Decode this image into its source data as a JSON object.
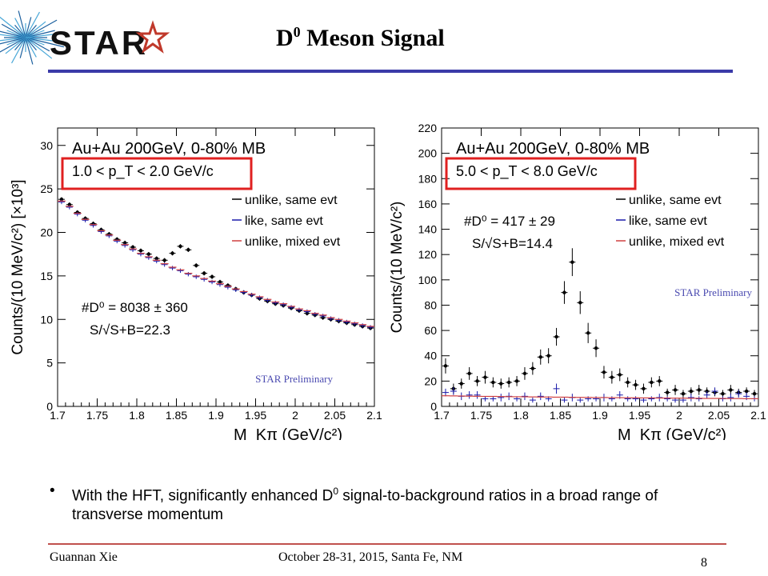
{
  "slide": {
    "logo_text": "STAR",
    "title_main": "D",
    "title_sup": "0",
    "title_rest": " Meson Signal",
    "bullet": {
      "marker": "•",
      "text_before": "With the HFT, significantly enhanced D",
      "text_sup": "0",
      "text_after": " signal-to-background ratios in a broad range of transverse momentum"
    },
    "footer_left": "Guannan Xie",
    "footer_center": "October 28-31, 2015, Santa Fe, NM",
    "page_number": "8"
  },
  "colors": {
    "title_line": "#3a3aa8",
    "footer_line": "#c0504d",
    "highlight_box": "#e02020",
    "unlike_same": "#000000",
    "like_same": "#1a1aaa",
    "unlike_mixed": "#d04040",
    "watermark": "#4a4ab0"
  },
  "chart_data": [
    {
      "type": "scatter",
      "title": "Au+Au 200GeV, 0-80% MB",
      "pt_label": "1.0 < p_T < 2.0 GeV/c",
      "xlabel": "M_Kπ (GeV/c²)",
      "ylabel": "Counts/(10 MeV/c²) [×10³]",
      "xlim": [
        1.7,
        2.1
      ],
      "ylim": [
        0,
        32
      ],
      "xticks": [
        1.7,
        1.75,
        1.8,
        1.85,
        1.9,
        1.95,
        2,
        2.05,
        2.1
      ],
      "xtick_labels": [
        "1.7",
        "1.75",
        "1.8",
        "1.85",
        "1.9",
        "1.95",
        "2",
        "2.05",
        "2.1"
      ],
      "yticks": [
        0,
        5,
        10,
        15,
        20,
        25,
        30
      ],
      "ytick_labels": [
        "0",
        "5",
        "10",
        "15",
        "20",
        "25",
        "30"
      ],
      "legend": [
        "unlike, same evt",
        "like, same evt",
        "unlike, mixed evt"
      ],
      "annotation_line1": "#D⁰ = 8038 ± 360",
      "annotation_line2": "S/√S+B=22.3",
      "watermark": "STAR Preliminary",
      "series": [
        {
          "name": "unlike, same evt",
          "x": [
            1.705,
            1.715,
            1.725,
            1.735,
            1.745,
            1.755,
            1.765,
            1.775,
            1.785,
            1.795,
            1.805,
            1.815,
            1.825,
            1.835,
            1.845,
            1.855,
            1.865,
            1.875,
            1.885,
            1.895,
            1.905,
            1.915,
            1.925,
            1.935,
            1.945,
            1.955,
            1.965,
            1.975,
            1.985,
            1.995,
            2.005,
            2.015,
            2.025,
            2.035,
            2.045,
            2.055,
            2.065,
            2.075,
            2.085,
            2.095
          ],
          "y": [
            23.8,
            23.2,
            22.3,
            21.6,
            21.0,
            20.3,
            19.8,
            19.2,
            18.8,
            18.3,
            17.9,
            17.5,
            17.0,
            16.8,
            17.6,
            18.4,
            18.0,
            16.2,
            15.3,
            14.9,
            14.3,
            13.9,
            13.5,
            13.1,
            12.8,
            12.4,
            12.1,
            11.8,
            11.6,
            11.3,
            11.0,
            10.7,
            10.5,
            10.2,
            10.0,
            9.8,
            9.6,
            9.4,
            9.2,
            9.0
          ]
        },
        {
          "name": "like, same evt",
          "x": [
            1.705,
            1.715,
            1.725,
            1.735,
            1.745,
            1.755,
            1.765,
            1.775,
            1.785,
            1.795,
            1.805,
            1.815,
            1.825,
            1.835,
            1.845,
            1.855,
            1.865,
            1.875,
            1.885,
            1.895,
            1.905,
            1.915,
            1.925,
            1.935,
            1.945,
            1.955,
            1.965,
            1.975,
            1.985,
            1.995,
            2.005,
            2.015,
            2.025,
            2.035,
            2.045,
            2.055,
            2.065,
            2.075,
            2.085,
            2.095
          ],
          "y": [
            23.5,
            22.9,
            22.1,
            21.4,
            20.8,
            20.1,
            19.6,
            19.0,
            18.5,
            18.0,
            17.5,
            17.1,
            16.7,
            16.3,
            15.9,
            15.6,
            15.2,
            14.9,
            14.6,
            14.3,
            14.0,
            13.7,
            13.4,
            13.1,
            12.8,
            12.5,
            12.2,
            11.9,
            11.7,
            11.4,
            11.1,
            10.9,
            10.6,
            10.4,
            10.1,
            9.9,
            9.7,
            9.5,
            9.3,
            9.1
          ]
        },
        {
          "name": "unlike, mixed evt",
          "x": [
            1.705,
            1.715,
            1.725,
            1.735,
            1.745,
            1.755,
            1.765,
            1.775,
            1.785,
            1.795,
            1.805,
            1.815,
            1.825,
            1.835,
            1.845,
            1.855,
            1.865,
            1.875,
            1.885,
            1.895,
            1.905,
            1.915,
            1.925,
            1.935,
            1.945,
            1.955,
            1.965,
            1.975,
            1.985,
            1.995,
            2.005,
            2.015,
            2.025,
            2.035,
            2.045,
            2.055,
            2.065,
            2.075,
            2.085,
            2.095
          ],
          "y": [
            23.6,
            23.0,
            22.2,
            21.5,
            20.9,
            20.2,
            19.7,
            19.1,
            18.6,
            18.1,
            17.6,
            17.2,
            16.8,
            16.4,
            16.0,
            15.7,
            15.3,
            15.0,
            14.7,
            14.4,
            14.1,
            13.8,
            13.5,
            13.2,
            12.9,
            12.6,
            12.3,
            12.0,
            11.8,
            11.5,
            11.2,
            11.0,
            10.7,
            10.5,
            10.2,
            10.0,
            9.8,
            9.6,
            9.4,
            9.2
          ]
        }
      ]
    },
    {
      "type": "scatter",
      "title": "Au+Au 200GeV, 0-80% MB",
      "pt_label": "5.0 < p_T < 8.0 GeV/c",
      "xlabel": "M_Kπ (GeV/c²)",
      "ylabel": "Counts/(10 MeV/c²)",
      "xlim": [
        1.7,
        2.1
      ],
      "ylim": [
        0,
        220
      ],
      "xticks": [
        1.7,
        1.75,
        1.8,
        1.85,
        1.9,
        1.95,
        2,
        2.05,
        2.1
      ],
      "xtick_labels": [
        "1.7",
        "1.75",
        "1.8",
        "1.85",
        "1.9",
        "1.95",
        "2",
        "2.05",
        "2.1"
      ],
      "yticks": [
        0,
        20,
        40,
        60,
        80,
        100,
        120,
        140,
        160,
        180,
        200,
        220
      ],
      "ytick_labels": [
        "0",
        "20",
        "40",
        "60",
        "80",
        "100",
        "120",
        "140",
        "160",
        "180",
        "200",
        "220"
      ],
      "legend": [
        "unlike, same evt",
        "like, same evt",
        "unlike, mixed evt"
      ],
      "annotation_line1": "#D⁰ = 417 ± 29",
      "annotation_line2": "S/√S+B=14.4",
      "watermark": "STAR Preliminary",
      "series": [
        {
          "name": "unlike, same evt",
          "x": [
            1.705,
            1.715,
            1.725,
            1.735,
            1.745,
            1.755,
            1.765,
            1.775,
            1.785,
            1.795,
            1.805,
            1.815,
            1.825,
            1.835,
            1.845,
            1.855,
            1.865,
            1.875,
            1.885,
            1.895,
            1.905,
            1.915,
            1.925,
            1.935,
            1.945,
            1.955,
            1.965,
            1.975,
            1.985,
            1.995,
            2.005,
            2.015,
            2.025,
            2.035,
            2.045,
            2.055,
            2.065,
            2.075,
            2.085,
            2.095
          ],
          "y": [
            32,
            14,
            18,
            26,
            20,
            23,
            19,
            18,
            19,
            20,
            26,
            30,
            39,
            40,
            55,
            90,
            114,
            82,
            58,
            46,
            27,
            23,
            25,
            19,
            17,
            14,
            19,
            20,
            11,
            13,
            10,
            12,
            13,
            12,
            11,
            10,
            13,
            11,
            12,
            10
          ],
          "err": [
            6,
            4,
            4,
            5,
            4,
            5,
            4,
            4,
            4,
            4,
            5,
            5,
            6,
            6,
            7,
            9,
            11,
            9,
            8,
            7,
            5,
            5,
            5,
            4,
            4,
            4,
            4,
            4,
            3,
            4,
            3,
            3,
            4,
            3,
            3,
            3,
            4,
            3,
            3,
            3
          ]
        },
        {
          "name": "like, same evt",
          "x": [
            1.705,
            1.715,
            1.725,
            1.735,
            1.745,
            1.755,
            1.765,
            1.775,
            1.785,
            1.795,
            1.805,
            1.815,
            1.825,
            1.835,
            1.845,
            1.855,
            1.865,
            1.875,
            1.885,
            1.895,
            1.905,
            1.915,
            1.925,
            1.935,
            1.945,
            1.955,
            1.965,
            1.975,
            1.985,
            1.995,
            2.005,
            2.015,
            2.025,
            2.035,
            2.045,
            2.055,
            2.065,
            2.075,
            2.085,
            2.095
          ],
          "y": [
            11,
            12,
            8,
            9,
            9,
            6,
            6,
            7,
            8,
            6,
            8,
            5,
            8,
            6,
            14,
            5,
            7,
            5,
            6,
            6,
            7,
            6,
            9,
            6,
            6,
            5,
            6,
            7,
            6,
            5,
            5,
            7,
            6,
            9,
            12,
            6,
            7,
            10,
            8,
            6
          ],
          "err": [
            3,
            3,
            3,
            3,
            3,
            2,
            2,
            3,
            3,
            2,
            3,
            2,
            3,
            2,
            4,
            2,
            3,
            2,
            2,
            2,
            3,
            2,
            3,
            2,
            2,
            2,
            2,
            3,
            2,
            2,
            2,
            3,
            2,
            3,
            3,
            2,
            3,
            3,
            3,
            2
          ]
        },
        {
          "name": "unlike, mixed evt",
          "x": [
            1.705,
            1.715,
            1.725,
            1.735,
            1.745,
            1.755,
            1.765,
            1.775,
            1.785,
            1.795,
            1.805,
            1.815,
            1.825,
            1.835,
            1.845,
            1.855,
            1.865,
            1.875,
            1.885,
            1.895,
            1.905,
            1.915,
            1.925,
            1.935,
            1.945,
            1.955,
            1.965,
            1.975,
            1.985,
            1.995,
            2.005,
            2.015,
            2.025,
            2.035,
            2.045,
            2.055,
            2.065,
            2.075,
            2.085,
            2.095
          ],
          "y": [
            8.4,
            8.3,
            8.2,
            8.1,
            8.0,
            7.9,
            7.9,
            7.8,
            7.7,
            7.6,
            7.6,
            7.5,
            7.4,
            7.4,
            7.3,
            7.3,
            7.2,
            7.1,
            7.1,
            7.0,
            7.0,
            6.9,
            6.9,
            6.8,
            6.8,
            6.7,
            6.7,
            6.6,
            6.6,
            6.5,
            6.5,
            6.4,
            6.4,
            6.3,
            6.3,
            6.3,
            6.2,
            6.2,
            6.1,
            6.1
          ]
        }
      ]
    }
  ]
}
